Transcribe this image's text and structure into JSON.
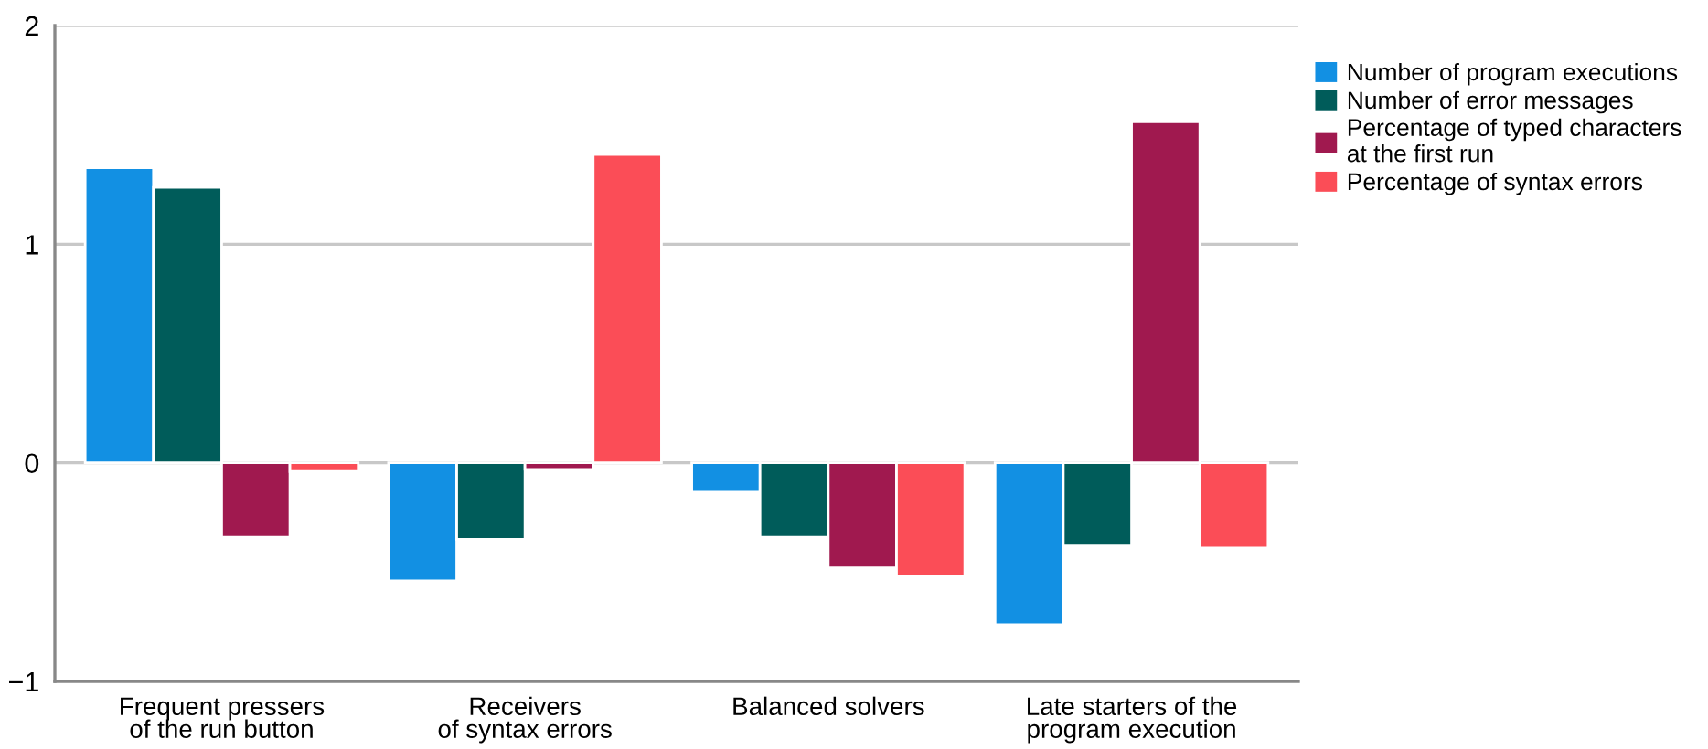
{
  "chart_data": {
    "type": "bar",
    "categories": [
      "Frequent pressers\nof the run button",
      "Receivers\nof syntax errors",
      "Balanced solvers",
      "Late starters of the\nprogram execution"
    ],
    "series": [
      {
        "name": "Number of program executions",
        "color": "#1290e3",
        "values": [
          1.35,
          -0.54,
          -0.13,
          -0.74
        ]
      },
      {
        "name": "Number of error messages",
        "color": "#005c5a",
        "values": [
          1.26,
          -0.35,
          -0.34,
          -0.38
        ]
      },
      {
        "name": "Percentage of typed characters\nat the first run",
        "color": "#a0194f",
        "values": [
          -0.34,
          -0.03,
          -0.48,
          1.56
        ]
      },
      {
        "name": "Percentage of syntax errors",
        "color": "#fb4d57",
        "values": [
          -0.04,
          1.41,
          -0.52,
          -0.39
        ]
      }
    ],
    "ylim": [
      -1,
      2
    ],
    "yticks": [
      {
        "value": -1,
        "label": "−1"
      },
      0,
      1,
      2
    ],
    "grid": "y",
    "legend": "top right"
  }
}
